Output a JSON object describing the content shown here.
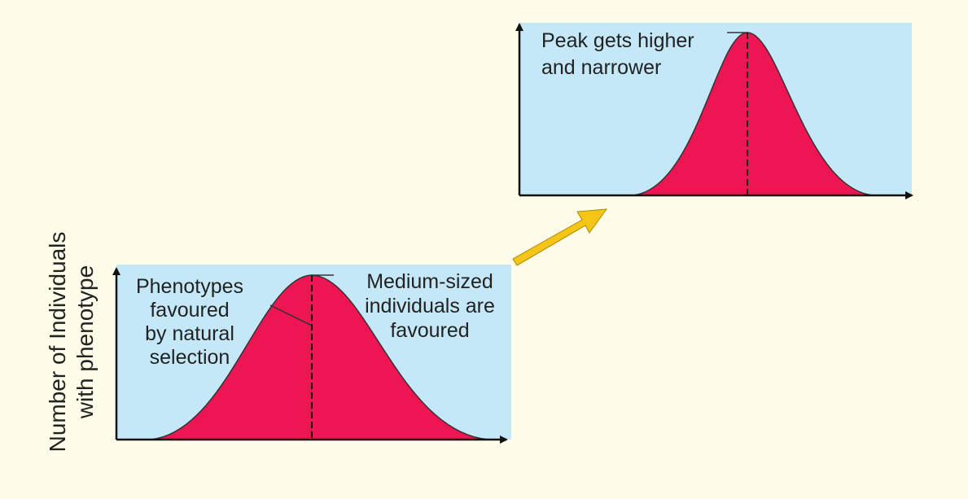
{
  "y_axis_label": [
    "Number of Individuals",
    "with phenotype"
  ],
  "panels": [
    {
      "annotations": [
        {
          "lines": [
            "Phenotypes",
            "favoured",
            "by natural",
            "selection"
          ]
        },
        {
          "lines": [
            "Medium-sized",
            "individuals are",
            "favoured"
          ]
        }
      ]
    },
    {
      "annotations": [
        {
          "lines": [
            "Peak gets higher",
            "and narrower"
          ]
        }
      ]
    }
  ]
}
